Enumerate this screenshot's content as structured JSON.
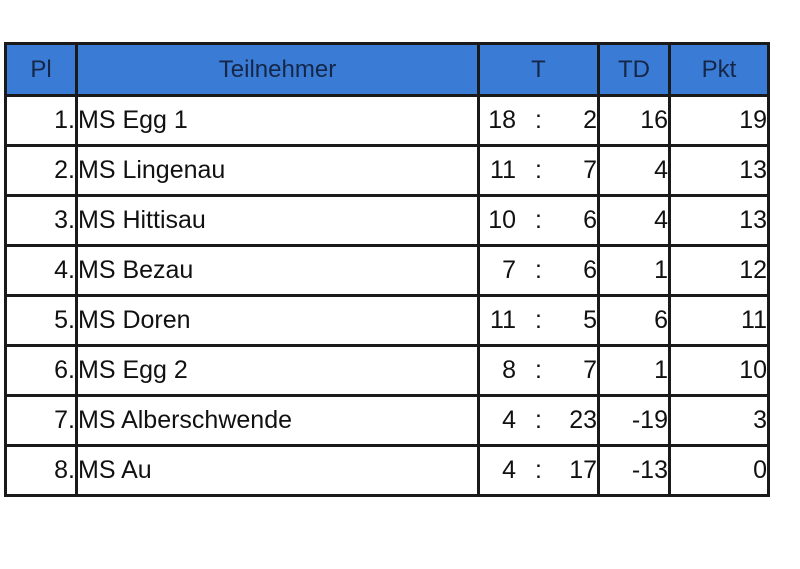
{
  "headers": {
    "pl": "Pl",
    "team": "Teilnehmer",
    "t": "T",
    "td": "TD",
    "pkt": "Pkt"
  },
  "rows": [
    {
      "pl": "1.",
      "team": "MS Egg 1",
      "goals_for": "18",
      "sep": ":",
      "goals_against": "2",
      "td": "16",
      "pkt": "19"
    },
    {
      "pl": "2.",
      "team": "MS Lingenau",
      "goals_for": "11",
      "sep": ":",
      "goals_against": "7",
      "td": "4",
      "pkt": "13"
    },
    {
      "pl": "3.",
      "team": "MS Hittisau",
      "goals_for": "10",
      "sep": ":",
      "goals_against": "6",
      "td": "4",
      "pkt": "13"
    },
    {
      "pl": "4.",
      "team": "MS Bezau",
      "goals_for": "7",
      "sep": ":",
      "goals_against": "6",
      "td": "1",
      "pkt": "12"
    },
    {
      "pl": "5.",
      "team": "MS Doren",
      "goals_for": "11",
      "sep": ":",
      "goals_against": "5",
      "td": "6",
      "pkt": "11"
    },
    {
      "pl": "6.",
      "team": "MS Egg 2",
      "goals_for": "8",
      "sep": ":",
      "goals_against": "7",
      "td": "1",
      "pkt": "10"
    },
    {
      "pl": "7.",
      "team": "MS Alberschwende",
      "goals_for": "4",
      "sep": ":",
      "goals_against": "23",
      "td": "-19",
      "pkt": "3"
    },
    {
      "pl": "8.",
      "team": "MS Au",
      "goals_for": "4",
      "sep": ":",
      "goals_against": "17",
      "td": "-13",
      "pkt": "0"
    }
  ],
  "colors": {
    "header_bg": "#3a7bd5",
    "header_text": "#152748",
    "border": "#1a1a1a"
  }
}
